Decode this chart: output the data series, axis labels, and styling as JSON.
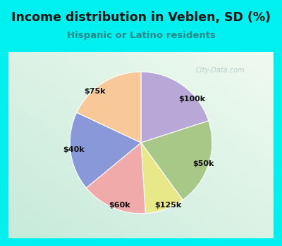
{
  "title": "Income distribution in Veblen, SD (%)",
  "subtitle": "Hispanic or Latino residents",
  "slices": [
    {
      "label": "$100k",
      "value": 20,
      "color": "#b8a8d8"
    },
    {
      "label": "$50k",
      "value": 20,
      "color": "#a8c888"
    },
    {
      "label": "$125k",
      "value": 9,
      "color": "#e8e888"
    },
    {
      "label": "$60k",
      "value": 15,
      "color": "#f0aaaa"
    },
    {
      "label": "$40k",
      "value": 18,
      "color": "#8898d8"
    },
    {
      "label": "$75k",
      "value": 18,
      "color": "#f8c898"
    }
  ],
  "bg_outer": "#00f0f0",
  "title_color": "#111111",
  "subtitle_color": "#2a8a8a",
  "label_color": "#111111",
  "watermark": "City-Data.com",
  "watermark_color": "#b0c8c8"
}
